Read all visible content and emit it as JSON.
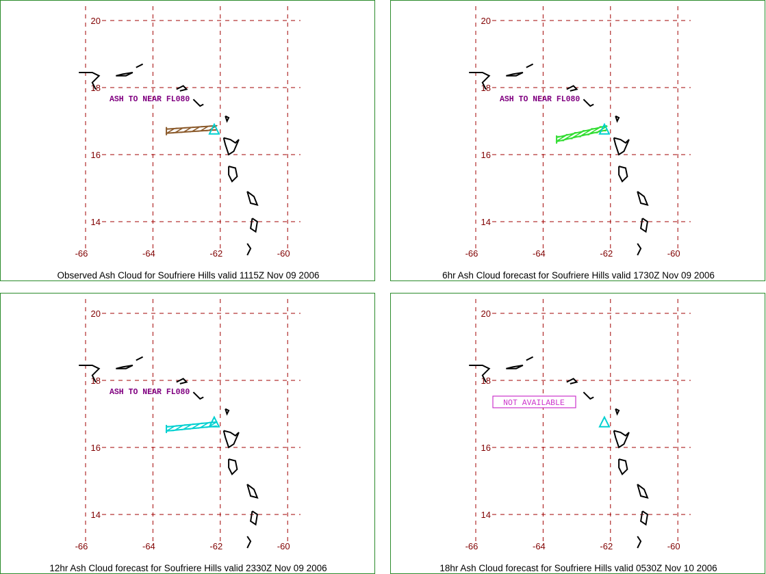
{
  "lat_ticks": [
    "20",
    "18",
    "16",
    "14"
  ],
  "lon_ticks": [
    "-66",
    "-64",
    "-62",
    "-60"
  ],
  "colors": {
    "grid": "#a00000",
    "coast": "#000000",
    "volcano": "#00d0d0",
    "note": "#800080",
    "panel_border": "#2a8a2a"
  },
  "panels": [
    {
      "caption": "Observed Ash Cloud for Soufriere  Hills valid 1115Z Nov 09 2006",
      "note": "ASH TO NEAR FL080",
      "ash_color": "#8b5a2b",
      "ash_cloud": [
        [
          -63.6,
          16.7
        ],
        [
          -62.1,
          16.8
        ]
      ]
    },
    {
      "caption": "6hr Ash Cloud forecast for Soufriere  Hills valid 1730Z Nov 09 2006",
      "note": "ASH TO NEAR FL080",
      "ash_color": "#33dd33",
      "ash_cloud": [
        [
          -63.6,
          16.45
        ],
        [
          -62.1,
          16.8
        ]
      ]
    },
    {
      "caption": "12hr Ash Cloud forecast for Soufriere  Hills valid 2330Z Nov 09 2006",
      "note": "ASH TO NEAR FL080",
      "ash_color": "#00d0d0",
      "ash_cloud": [
        [
          -63.6,
          16.55
        ],
        [
          -62.1,
          16.7
        ]
      ]
    },
    {
      "caption": "18hr Ash Cloud forecast for Soufriere  Hills valid 0530Z Nov 10 2006",
      "note": "NOT AVAILABLE",
      "note_boxed": true,
      "ash_color": "",
      "ash_cloud": []
    }
  ],
  "volcano": {
    "name_icon": "volcano-triangle-icon",
    "lon": -62.18,
    "lat": 16.72
  }
}
